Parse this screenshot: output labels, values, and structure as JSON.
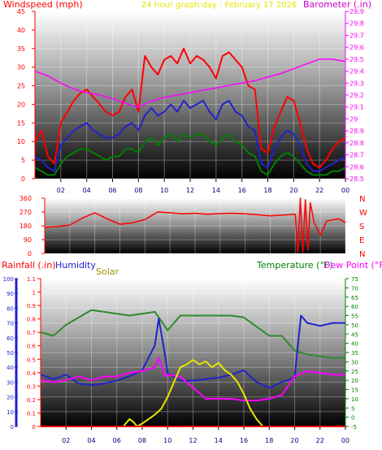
{
  "chart_data": [
    {
      "type": "line",
      "title": "24 hour graph day : February 17 2026",
      "ylabel_left": "Windspeed (mph)",
      "ylabel_right": "Barometer (.in)",
      "x_ticks": [
        "02",
        "04",
        "06",
        "08",
        "10",
        "12",
        "14",
        "16",
        "18",
        "20",
        "22",
        "00"
      ],
      "xlim": [
        0,
        24
      ],
      "ylim_left": [
        0,
        45
      ],
      "ylim_right": [
        28.5,
        29.9
      ],
      "left_ticks": [
        0,
        5,
        10,
        15,
        20,
        25,
        30,
        35,
        40,
        45
      ],
      "right_ticks": [
        "28.5",
        "28.6",
        "28.7",
        "28.8",
        "28.9",
        "29",
        "29.1",
        "29.2",
        "29.3",
        "29.4",
        "29.5",
        "29.6",
        "29.7",
        "29.8",
        "29.9"
      ],
      "series": [
        {
          "key": "gust",
          "color": "#ff0000",
          "x": [
            0,
            0.5,
            1,
            1.5,
            2,
            2.5,
            3,
            3.5,
            4,
            4.5,
            5,
            5.5,
            6,
            6.5,
            7,
            7.5,
            8,
            8.5,
            9,
            9.5,
            10,
            10.5,
            11,
            11.5,
            12,
            12.5,
            13,
            13.5,
            14,
            14.5,
            15,
            15.5,
            16,
            16.5,
            17,
            17.5,
            18,
            18.5,
            19,
            19.5,
            20,
            20.5,
            21,
            21.5,
            22,
            22.5,
            23,
            23.5,
            24
          ],
          "y": [
            10,
            13,
            6,
            4,
            15,
            18,
            21,
            23,
            24,
            22,
            20,
            18,
            17,
            18,
            22,
            24,
            18,
            33,
            30,
            28,
            32,
            33,
            31,
            35,
            31,
            33,
            32,
            30,
            27,
            33,
            34,
            32,
            30,
            25,
            24,
            8,
            7,
            14,
            18,
            22,
            21,
            15,
            8,
            4,
            3,
            5,
            8,
            10,
            11
          ]
        },
        {
          "key": "wind",
          "color": "#2222cc",
          "x": [
            0,
            0.5,
            1,
            1.5,
            2,
            2.5,
            3,
            3.5,
            4,
            4.5,
            5,
            5.5,
            6,
            6.5,
            7,
            7.5,
            8,
            8.5,
            9,
            9.5,
            10,
            10.5,
            11,
            11.5,
            12,
            12.5,
            13,
            13.5,
            14,
            14.5,
            15,
            15.5,
            16,
            16.5,
            17,
            17.5,
            18,
            18.5,
            19,
            19.5,
            20,
            20.5,
            21,
            21.5,
            22,
            22.5,
            23,
            23.5,
            24
          ],
          "y": [
            6,
            5,
            3,
            2,
            9,
            11,
            13,
            14,
            15,
            13,
            12,
            11,
            11,
            12,
            14,
            15,
            13,
            17,
            19,
            17,
            18,
            20,
            18,
            21,
            19,
            20,
            21,
            18,
            16,
            20,
            21,
            18,
            17,
            14,
            13,
            4,
            3,
            8,
            11,
            13,
            12,
            9,
            4,
            2,
            2,
            3,
            4,
            5,
            6
          ]
        },
        {
          "key": "avg",
          "color": "#008000",
          "x": [
            0,
            0.5,
            1,
            1.5,
            2,
            2.5,
            3,
            3.5,
            4,
            4.5,
            5,
            5.5,
            6,
            6.5,
            7,
            7.5,
            8,
            8.5,
            9,
            9.5,
            10,
            10.5,
            11,
            11.5,
            12,
            12.5,
            13,
            13.5,
            14,
            14.5,
            15,
            15.5,
            16,
            16.5,
            17,
            17.5,
            18,
            18.5,
            19,
            19.5,
            20,
            20.5,
            21,
            21.5,
            22,
            22.5,
            23,
            23.5,
            24
          ],
          "y": [
            3,
            2,
            1,
            1,
            4,
            6,
            7,
            8,
            8,
            7,
            6,
            5,
            6,
            6,
            8,
            8,
            7,
            10,
            11,
            9,
            11,
            12,
            10,
            12,
            11,
            12,
            12,
            10,
            9,
            11,
            12,
            10,
            9,
            7,
            6,
            2,
            1,
            4,
            6,
            7,
            6,
            4,
            2,
            1,
            1,
            1,
            2,
            2,
            3
          ]
        },
        {
          "key": "baro",
          "color": "#ff00ff",
          "axis": "right",
          "x": [
            0,
            1,
            2,
            3,
            4,
            5,
            6,
            7,
            8,
            9,
            10,
            11,
            12,
            13,
            14,
            15,
            16,
            17,
            18,
            19,
            20,
            21,
            22,
            23,
            24
          ],
          "y": [
            29.4,
            29.36,
            29.3,
            29.25,
            29.22,
            29.2,
            29.17,
            29.13,
            29.1,
            29.15,
            29.18,
            29.2,
            29.22,
            29.24,
            29.26,
            29.28,
            29.3,
            29.32,
            29.35,
            29.38,
            29.42,
            29.46,
            29.5,
            29.5,
            29.48
          ]
        }
      ]
    },
    {
      "type": "line",
      "ylabel_right": [
        "N",
        "W",
        "S",
        "E",
        "N"
      ],
      "ylim": [
        0,
        360
      ],
      "left_ticks": [
        0,
        90,
        180,
        270,
        360
      ],
      "xlim": [
        0,
        24
      ],
      "series": [
        {
          "key": "dir",
          "color": "#ff0000",
          "x": [
            0,
            1,
            2,
            3,
            4,
            5,
            6,
            7,
            8,
            9,
            10,
            11,
            12,
            13,
            14,
            15,
            16,
            17,
            18,
            19,
            20,
            20.2,
            20.4,
            20.6,
            20.8,
            21,
            21.2,
            21.5,
            22,
            22.5,
            23,
            23.5,
            24
          ],
          "y": [
            170,
            175,
            185,
            230,
            265,
            225,
            190,
            200,
            220,
            270,
            265,
            258,
            262,
            255,
            260,
            262,
            258,
            252,
            245,
            250,
            255,
            5,
            360,
            10,
            350,
            20,
            330,
            200,
            120,
            210,
            220,
            225,
            200
          ]
        }
      ]
    },
    {
      "type": "line",
      "ylabel_left": "Rainfall (.in)",
      "ylabel_left2": "Humidity",
      "ylabel_solar": "Solar",
      "ylabel_right": "Temperature (°F)",
      "ylabel_right2": "Dew Point (°F)",
      "x_ticks": [
        "02",
        "04",
        "06",
        "08",
        "10",
        "12",
        "14",
        "16",
        "18",
        "20",
        "22",
        "00"
      ],
      "xlim": [
        0,
        24
      ],
      "ylim_humidity": [
        0,
        100
      ],
      "ylim_rain": [
        0,
        1.1
      ],
      "ylim_temp": [
        -5,
        75
      ],
      "humidity_ticks": [
        0,
        10,
        20,
        30,
        40,
        50,
        60,
        70,
        80,
        90,
        100
      ],
      "rain_ticks": [
        "0",
        "0.1",
        "0.2",
        "0.3",
        "0.4",
        "0.5",
        "0.6",
        "0.7",
        "0.8",
        "0.9",
        "1",
        "1.1"
      ],
      "temp_ticks": [
        -5,
        0,
        5,
        10,
        15,
        20,
        25,
        30,
        35,
        40,
        45,
        50,
        55,
        60,
        65,
        70,
        75
      ],
      "series": [
        {
          "key": "temp",
          "color": "#2e8b2e",
          "axis": "temp",
          "x": [
            0,
            1,
            2,
            3,
            4,
            5,
            6,
            7,
            8,
            9,
            10,
            11,
            12,
            13,
            14,
            15,
            16,
            17,
            18,
            19,
            20,
            21,
            22,
            23,
            24
          ],
          "y": [
            46,
            44,
            50,
            54,
            58,
            57,
            56,
            55,
            56,
            57,
            47,
            55,
            55,
            55,
            55,
            55,
            54,
            49,
            44,
            44,
            36,
            34,
            33,
            32,
            32
          ]
        },
        {
          "key": "humidity",
          "color": "#2222cc",
          "axis": "humidity",
          "x": [
            0,
            1,
            2,
            3,
            4,
            5,
            6,
            7,
            8,
            9,
            9.3,
            9.8,
            10,
            11,
            12,
            13,
            14,
            15,
            16,
            17,
            18,
            19,
            20,
            20.5,
            21,
            22,
            23,
            24
          ],
          "y": [
            35,
            32,
            35,
            29,
            28,
            29,
            31,
            34,
            38,
            55,
            73,
            48,
            36,
            31,
            31,
            32,
            33,
            35,
            38,
            30,
            26,
            30,
            33,
            75,
            70,
            68,
            70,
            70
          ]
        },
        {
          "key": "dew",
          "color": "#ff00ff",
          "axis": "temp",
          "x": [
            0,
            1,
            2,
            3,
            4,
            5,
            6,
            7,
            8,
            9,
            9.3,
            9.8,
            10,
            11,
            12,
            13,
            14,
            15,
            16,
            17,
            18,
            19,
            20,
            21,
            22,
            23,
            24
          ],
          "y": [
            20,
            19,
            20,
            22,
            20,
            22,
            22,
            24,
            25,
            27,
            32,
            22,
            23,
            22,
            16,
            10,
            10,
            10,
            9,
            9,
            10,
            12,
            22,
            25,
            24,
            23,
            23
          ]
        },
        {
          "key": "solar",
          "color": "#e6e600",
          "axis": "solar",
          "x": [
            6.5,
            7,
            7.3,
            7.6,
            8,
            8.5,
            9,
            9.5,
            10,
            10.5,
            11,
            11.5,
            12,
            12.5,
            13,
            13.5,
            14,
            14.5,
            15,
            15.5,
            16,
            16.5,
            17,
            17.5
          ],
          "y": [
            0,
            5,
            3,
            0,
            2,
            5,
            8,
            12,
            20,
            30,
            40,
            42,
            45,
            42,
            44,
            40,
            43,
            38,
            35,
            30,
            22,
            12,
            5,
            0
          ]
        },
        {
          "key": "rain",
          "color": "#ff0000",
          "axis": "rain",
          "x": [
            0,
            24
          ],
          "y": [
            0,
            0
          ]
        }
      ]
    }
  ]
}
